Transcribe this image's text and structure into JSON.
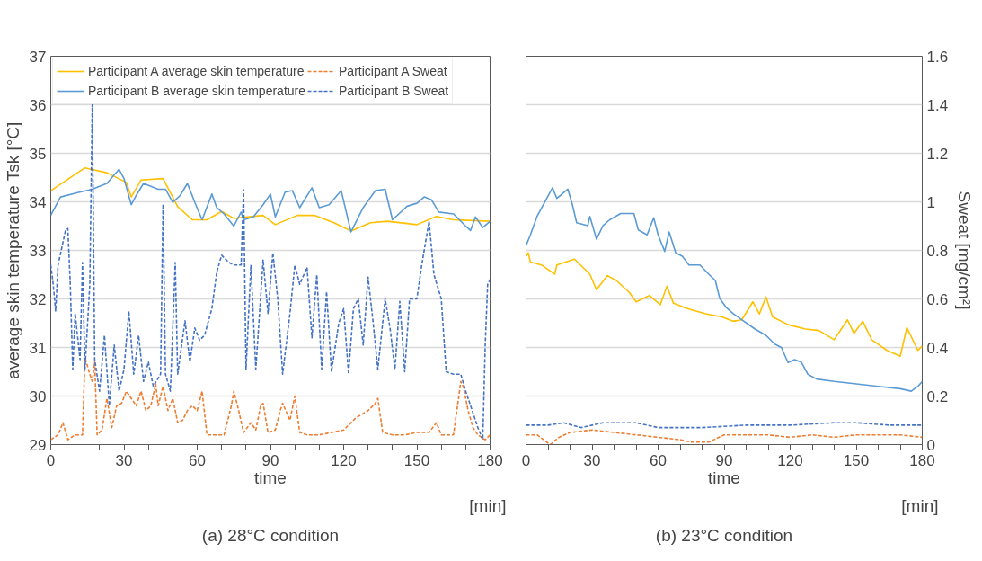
{
  "chart_data": [
    {
      "type": "line",
      "title": "(a) 28°C condition",
      "xlabel": "time",
      "ylabel": "average skin temperature Tsk [°C]",
      "annotations": [
        "[min]"
      ],
      "xlim": [
        0,
        180
      ],
      "xticks": [
        0,
        {
          "value": 10,
          "label": null
        },
        {
          "value": 20,
          "label": null
        },
        30,
        {
          "value": 40,
          "label": null
        },
        {
          "value": 50,
          "label": null
        },
        60,
        {
          "value": 70,
          "label": null
        },
        {
          "value": 80,
          "label": null
        },
        90,
        {
          "value": 100,
          "label": null
        },
        {
          "value": 110,
          "label": null
        },
        120,
        {
          "value": 130,
          "label": null
        },
        {
          "value": 140,
          "label": null
        },
        150,
        {
          "value": 160,
          "label": null
        },
        {
          "value": 170,
          "label": null
        },
        180
      ],
      "ylim": [
        29,
        37
      ],
      "yticks": [
        29,
        30,
        31,
        32,
        33,
        34,
        35,
        36,
        37
      ],
      "y2lim": [
        0,
        1.6
      ],
      "grid": "y",
      "legend": "top",
      "series": [
        {
          "name": "Participant A average skin temperature",
          "color": "#ffc000",
          "line_style": "solid",
          "x": [
            0,
            14,
            23,
            31,
            33,
            37,
            46,
            52,
            58,
            64,
            70,
            75,
            87,
            92,
            101,
            108,
            116,
            123,
            131,
            138,
            150,
            158,
            165,
            180
          ],
          "values": [
            34.23,
            34.7,
            34.6,
            34.4,
            34.1,
            34.45,
            34.48,
            33.9,
            33.63,
            33.63,
            33.8,
            33.66,
            33.72,
            33.53,
            33.72,
            33.72,
            33.57,
            33.4,
            33.57,
            33.6,
            33.53,
            33.7,
            33.63,
            33.6
          ]
        },
        {
          "name": "Participant B average skin temperature",
          "color": "#5b9bd5",
          "line_style": "solid",
          "x": [
            0,
            4,
            11,
            17,
            23,
            28,
            30,
            33,
            35,
            38,
            44,
            47,
            50,
            53,
            56,
            59,
            62,
            66,
            68,
            71,
            75,
            78,
            79,
            83,
            87,
            90,
            92,
            96,
            99,
            102,
            107,
            110,
            114,
            119,
            123,
            128,
            133,
            137,
            140,
            146,
            150,
            153,
            156,
            159,
            165,
            170,
            172,
            174,
            177,
            180
          ],
          "values": [
            33.72,
            34.1,
            34.19,
            34.26,
            34.38,
            34.67,
            34.48,
            33.94,
            34.13,
            34.38,
            34.26,
            34.26,
            33.99,
            34.13,
            34.38,
            33.99,
            33.63,
            34.16,
            33.88,
            33.75,
            33.5,
            33.79,
            33.63,
            33.69,
            33.94,
            34.16,
            33.69,
            34.2,
            34.23,
            33.88,
            34.29,
            33.88,
            33.94,
            34.23,
            33.38,
            33.88,
            34.23,
            34.26,
            33.63,
            33.91,
            33.97,
            34.1,
            34.04,
            33.79,
            33.75,
            33.5,
            33.41,
            33.69,
            33.47,
            33.6
          ]
        },
        {
          "name": "Participant A Sweat",
          "color": "#ed7d31",
          "line_style": "dashed",
          "axis": "y2",
          "x": [
            0,
            3,
            5,
            7,
            10,
            13,
            14,
            16,
            17,
            18,
            19,
            21,
            23,
            25,
            27,
            29,
            31,
            33,
            35,
            37,
            39,
            41,
            43,
            44,
            46,
            48,
            50,
            52,
            54,
            56,
            58,
            60,
            62,
            64,
            68,
            71,
            74,
            75,
            77,
            79,
            82,
            84,
            86,
            87,
            89,
            92,
            94,
            95,
            98,
            100,
            102,
            105,
            110,
            115,
            120,
            125,
            130,
            133,
            134,
            136,
            140,
            145,
            150,
            155,
            158,
            160,
            165,
            168,
            169,
            171,
            173,
            175,
            178,
            180
          ],
          "values": [
            0.02,
            0.04,
            0.09,
            0.02,
            0.04,
            0.04,
            0.36,
            0.29,
            0.26,
            0.34,
            0.04,
            0.06,
            0.19,
            0.07,
            0.16,
            0.17,
            0.22,
            0.19,
            0.16,
            0.22,
            0.14,
            0.16,
            0.25,
            0.16,
            0.24,
            0.14,
            0.19,
            0.09,
            0.1,
            0.14,
            0.16,
            0.14,
            0.22,
            0.04,
            0.04,
            0.04,
            0.16,
            0.22,
            0.14,
            0.05,
            0.09,
            0.06,
            0.16,
            0.17,
            0.05,
            0.06,
            0.14,
            0.17,
            0.1,
            0.2,
            0.05,
            0.04,
            0.04,
            0.05,
            0.06,
            0.11,
            0.14,
            0.17,
            0.19,
            0.05,
            0.04,
            0.04,
            0.05,
            0.05,
            0.09,
            0.04,
            0.04,
            0.26,
            0.24,
            0.14,
            0.07,
            0.04,
            0.02,
            0.04
          ]
        },
        {
          "name": "Participant B Sweat",
          "color": "#4472c4",
          "line_style": "dashed",
          "axis": "y2",
          "x": [
            0,
            1,
            2,
            3,
            6,
            7,
            8,
            9,
            10,
            12,
            13,
            14,
            16,
            17,
            18,
            20,
            22,
            24,
            26,
            28,
            30,
            32,
            34,
            36,
            38,
            40,
            42,
            45,
            46,
            47,
            49,
            51,
            52,
            55,
            57,
            59,
            61,
            63,
            66,
            68,
            70,
            73,
            75,
            78,
            79,
            80,
            82,
            84,
            87,
            89,
            91,
            93,
            95,
            98,
            100,
            102,
            105,
            107,
            109,
            111,
            113,
            115,
            118,
            120,
            122,
            124,
            126,
            128,
            130,
            132,
            134,
            137,
            139,
            141,
            143,
            145,
            147,
            150,
            152,
            155,
            157,
            160,
            162,
            165,
            168,
            170,
            172,
            175,
            177,
            178,
            179,
            180
          ],
          "values": [
            0.74,
            0.66,
            0.55,
            0.74,
            0.88,
            0.89,
            0.66,
            0.31,
            0.54,
            0.35,
            0.75,
            0.31,
            0.66,
            1.4,
            0.35,
            0.22,
            0.45,
            0.16,
            0.41,
            0.22,
            0.31,
            0.55,
            0.29,
            0.45,
            0.26,
            0.34,
            0.24,
            0.29,
            0.99,
            0.29,
            0.22,
            0.75,
            0.29,
            0.51,
            0.34,
            0.48,
            0.43,
            0.45,
            0.56,
            0.71,
            0.78,
            0.75,
            0.74,
            0.74,
            1.05,
            0.31,
            0.74,
            0.31,
            0.76,
            0.54,
            0.79,
            0.6,
            0.29,
            0.54,
            0.74,
            0.66,
            0.73,
            0.44,
            0.7,
            0.31,
            0.63,
            0.3,
            0.5,
            0.56,
            0.29,
            0.56,
            0.6,
            0.41,
            0.69,
            0.51,
            0.31,
            0.6,
            0.48,
            0.31,
            0.59,
            0.3,
            0.6,
            0.6,
            0.74,
            0.92,
            0.7,
            0.6,
            0.3,
            0.29,
            0.29,
            0.22,
            0.16,
            0.07,
            0.02,
            0.41,
            0.66,
            0.68
          ]
        }
      ]
    },
    {
      "type": "line",
      "title": "(b) 23°C condition",
      "xlabel": "time",
      "y2label": "Sweat [mg/cm²]",
      "annotations": [
        "[min]"
      ],
      "xlim": [
        0,
        180
      ],
      "xticks": [
        0,
        {
          "value": 10,
          "label": null
        },
        {
          "value": 20,
          "label": null
        },
        30,
        {
          "value": 40,
          "label": null
        },
        {
          "value": 50,
          "label": null
        },
        60,
        {
          "value": 70,
          "label": null
        },
        {
          "value": 80,
          "label": null
        },
        90,
        {
          "value": 100,
          "label": null
        },
        {
          "value": 110,
          "label": null
        },
        120,
        {
          "value": 130,
          "label": null
        },
        {
          "value": 140,
          "label": null
        },
        150,
        {
          "value": 160,
          "label": null
        },
        {
          "value": 170,
          "label": null
        },
        180
      ],
      "ylim": [
        29,
        37
      ],
      "y2lim": [
        0,
        1.6
      ],
      "y2ticks": [
        0,
        0.2,
        0.4,
        0.6,
        0.8,
        1,
        1.2,
        1.4,
        1.6
      ],
      "grid": "y",
      "series": [
        {
          "color": "#ffc000",
          "line_style": "solid",
          "x": [
            0,
            1,
            2,
            7,
            13,
            14,
            22,
            29,
            32,
            37,
            41,
            47,
            50,
            56,
            61,
            64,
            67,
            74,
            82,
            89,
            94,
            98,
            103,
            106,
            109,
            112,
            119,
            127,
            133,
            140,
            146,
            149,
            153,
            157,
            164,
            170,
            173,
            178,
            180
          ],
          "values": [
            32.88,
            32.95,
            32.76,
            32.7,
            32.51,
            32.7,
            32.82,
            32.51,
            32.19,
            32.48,
            32.38,
            32.13,
            31.94,
            32.07,
            31.88,
            32.26,
            31.91,
            31.79,
            31.69,
            31.63,
            31.54,
            31.57,
            31.94,
            31.69,
            32.04,
            31.63,
            31.47,
            31.38,
            31.35,
            31.16,
            31.57,
            31.29,
            31.54,
            31.16,
            30.94,
            30.82,
            31.41,
            30.94,
            31.03
          ]
        },
        {
          "color": "#5b9bd5",
          "line_style": "solid",
          "x": [
            0,
            2,
            5,
            8,
            12,
            14,
            19,
            21,
            23,
            28,
            29,
            32,
            35,
            38,
            43,
            49,
            51,
            55,
            58,
            60,
            63,
            65,
            68,
            71,
            74,
            79,
            83,
            86,
            88,
            91,
            94,
            98,
            104,
            109,
            113,
            116,
            119,
            122,
            125,
            128,
            132,
            140,
            150,
            160,
            170,
            175,
            178,
            180
          ],
          "values": [
            33.1,
            33.32,
            33.7,
            33.95,
            34.29,
            34.07,
            34.26,
            33.95,
            33.57,
            33.51,
            33.7,
            33.23,
            33.51,
            33.63,
            33.76,
            33.76,
            33.42,
            33.32,
            33.67,
            33.32,
            32.98,
            33.38,
            32.95,
            32.88,
            32.7,
            32.7,
            32.51,
            32.38,
            32.01,
            31.82,
            31.7,
            31.57,
            31.38,
            31.25,
            31.07,
            31.0,
            30.69,
            30.75,
            30.7,
            30.45,
            30.35,
            30.3,
            30.25,
            30.2,
            30.15,
            30.1,
            30.2,
            30.3
          ]
        },
        {
          "color": "#ed7d31",
          "line_style": "dashed",
          "axis": "y2",
          "x": [
            0,
            5,
            11,
            15,
            20,
            30,
            40,
            50,
            60,
            70,
            75,
            83,
            90,
            100,
            110,
            120,
            130,
            140,
            150,
            160,
            170,
            180
          ],
          "values": [
            0.04,
            0.04,
            0.0,
            0.03,
            0.05,
            0.06,
            0.05,
            0.04,
            0.03,
            0.02,
            0.01,
            0.01,
            0.04,
            0.04,
            0.04,
            0.03,
            0.04,
            0.03,
            0.04,
            0.04,
            0.04,
            0.03
          ]
        },
        {
          "color": "#4472c4",
          "line_style": "dashed",
          "axis": "y2",
          "x": [
            0,
            10,
            17,
            25,
            35,
            50,
            60,
            80,
            100,
            120,
            140,
            150,
            165,
            180
          ],
          "values": [
            0.08,
            0.08,
            0.09,
            0.07,
            0.09,
            0.09,
            0.07,
            0.07,
            0.08,
            0.08,
            0.09,
            0.09,
            0.08,
            0.08
          ]
        }
      ]
    }
  ]
}
